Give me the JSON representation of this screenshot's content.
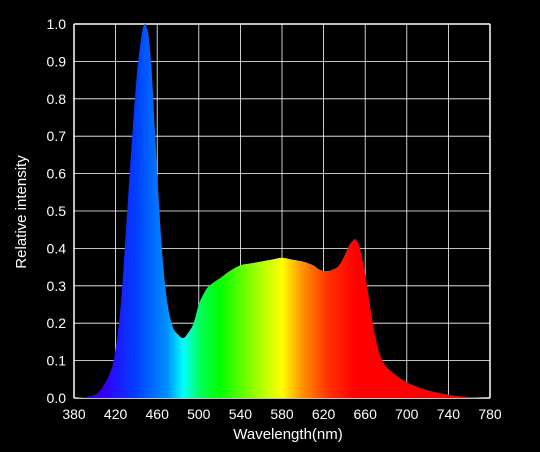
{
  "chart_data": {
    "type": "area",
    "title": "",
    "xlabel": "Wavelength(nm)",
    "ylabel": "Relative intensity",
    "xlim": [
      380,
      780
    ],
    "ylim": [
      0,
      1.0
    ],
    "x_ticks": [
      380,
      420,
      460,
      500,
      540,
      580,
      620,
      660,
      700,
      740,
      780
    ],
    "y_ticks": [
      0.0,
      0.1,
      0.2,
      0.3,
      0.4,
      0.5,
      0.6,
      0.7,
      0.8,
      0.9,
      1.0
    ],
    "x_tick_labels": [
      "380",
      "420",
      "460",
      "500",
      "540",
      "580",
      "620",
      "660",
      "700",
      "740",
      "780"
    ],
    "y_tick_labels": [
      "0.0",
      "0.1",
      "0.2",
      "0.3",
      "0.4",
      "0.5",
      "0.6",
      "0.7",
      "0.8",
      "0.9",
      "1.0"
    ],
    "grid": true,
    "legend": "none",
    "colors": {
      "background": "#000000",
      "grid": "#ffffff",
      "text": "#ffffff"
    },
    "spectrum_gradient": [
      {
        "nm": 380,
        "color": "#3a007a"
      },
      {
        "nm": 410,
        "color": "#3000ff"
      },
      {
        "nm": 440,
        "color": "#0040ff"
      },
      {
        "nm": 470,
        "color": "#0090ff"
      },
      {
        "nm": 485,
        "color": "#00ffff"
      },
      {
        "nm": 500,
        "color": "#00ff60"
      },
      {
        "nm": 520,
        "color": "#00ff00"
      },
      {
        "nm": 560,
        "color": "#b0ff00"
      },
      {
        "nm": 580,
        "color": "#ffff00"
      },
      {
        "nm": 600,
        "color": "#ff9000"
      },
      {
        "nm": 625,
        "color": "#ff3000"
      },
      {
        "nm": 650,
        "color": "#ff0000"
      },
      {
        "nm": 780,
        "color": "#ff0000"
      }
    ],
    "x": [
      380,
      395,
      405,
      415,
      420,
      425,
      430,
      435,
      440,
      445,
      448,
      450,
      452,
      455,
      460,
      465,
      470,
      475,
      480,
      485,
      490,
      495,
      500,
      505,
      510,
      520,
      530,
      540,
      550,
      560,
      570,
      580,
      590,
      600,
      610,
      615,
      620,
      625,
      630,
      635,
      640,
      645,
      648,
      650,
      652,
      655,
      660,
      665,
      670,
      675,
      680,
      690,
      700,
      710,
      720,
      730,
      740,
      750,
      760,
      770,
      780
    ],
    "y": [
      0.0,
      0.005,
      0.02,
      0.07,
      0.13,
      0.25,
      0.45,
      0.66,
      0.85,
      0.97,
      1.0,
      0.99,
      0.96,
      0.86,
      0.6,
      0.38,
      0.25,
      0.19,
      0.17,
      0.16,
      0.175,
      0.2,
      0.25,
      0.28,
      0.3,
      0.32,
      0.34,
      0.355,
      0.36,
      0.365,
      0.37,
      0.375,
      0.37,
      0.365,
      0.355,
      0.345,
      0.34,
      0.34,
      0.345,
      0.355,
      0.38,
      0.41,
      0.42,
      0.425,
      0.42,
      0.4,
      0.33,
      0.24,
      0.16,
      0.11,
      0.085,
      0.06,
      0.042,
      0.03,
      0.021,
      0.014,
      0.009,
      0.005,
      0.003,
      0.001,
      0.0
    ]
  }
}
